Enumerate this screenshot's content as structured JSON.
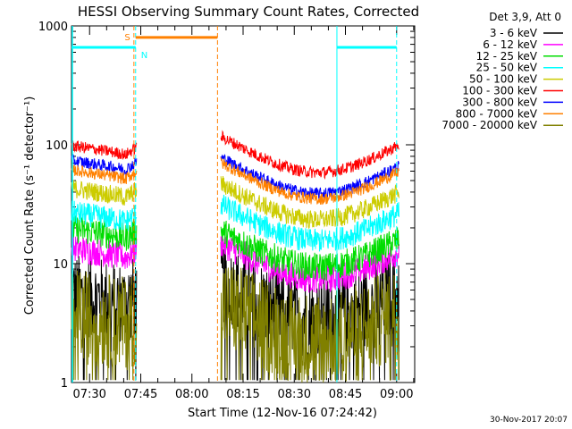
{
  "chart_data": {
    "type": "line",
    "title": "HESSI Observing Summary Count Rates, Corrected",
    "xlabel": "Start Time (12-Nov-16 07:24:42)",
    "ylabel": "Corrected Count Rate (s⁻¹ detector⁻¹)",
    "yscale": "log",
    "ylim": [
      1,
      1000
    ],
    "xlim_minutes": [
      24.7,
      125.3
    ],
    "x_ticks": [
      {
        "m": 30,
        "label": "07:30"
      },
      {
        "m": 45,
        "label": "07:45"
      },
      {
        "m": 60,
        "label": "08:00"
      },
      {
        "m": 75,
        "label": "08:15"
      },
      {
        "m": 90,
        "label": "08:30"
      },
      {
        "m": 105,
        "label": "08:45"
      },
      {
        "m": 120,
        "label": "09:00"
      }
    ],
    "y_ticks": [
      {
        "v": 1,
        "label": "1"
      },
      {
        "v": 10,
        "label": "10"
      },
      {
        "v": 100,
        "label": "100"
      },
      {
        "v": 1000,
        "label": "1000"
      }
    ],
    "legend_header": "Det 3,9, Att 0",
    "legend_position": "right",
    "series": [
      {
        "name": "3 - 6 keV",
        "color": "#000000",
        "pre": 4.5,
        "post": 4.5,
        "noise": 0.35
      },
      {
        "name": "6 - 12 keV",
        "color": "#ff00ff",
        "pre": 11,
        "post": 9.5,
        "noise": 0.12
      },
      {
        "name": "12 - 25 keV",
        "color": "#00dd00",
        "pre": 16,
        "post": 12,
        "noise": 0.12
      },
      {
        "name": "25 - 50 keV",
        "color": "#00ffff",
        "pre": 22,
        "post": 20,
        "noise": 0.1
      },
      {
        "name": "50 - 100 keV",
        "color": "#cccc00",
        "pre": 35,
        "post": 30,
        "noise": 0.08
      },
      {
        "name": "100 - 300 keV",
        "color": "#ff0000",
        "pre": 80,
        "post": 75,
        "noise": 0.05
      },
      {
        "name": "300 - 800 keV",
        "color": "#0000ff",
        "pre": 60,
        "post": 50,
        "noise": 0.05
      },
      {
        "name": "800 - 7000 keV",
        "color": "#ff8000",
        "pre": 50,
        "post": 45,
        "noise": 0.05
      },
      {
        "name": "7000 - 20000 keV",
        "color": "#808000",
        "pre": 3,
        "post": 3,
        "noise": 0.4
      }
    ],
    "annotations": {
      "saa_label": "S",
      "night_label": "N",
      "saa_bar": {
        "start_m": 43.5,
        "end_m": 67.5,
        "level": 800,
        "color": "#ff8000"
      },
      "night_bars": [
        {
          "start_m": 24.7,
          "end_m": 43.5,
          "level": 660,
          "color": "#00ffff"
        },
        {
          "start_m": 102.5,
          "end_m": 120,
          "level": 660,
          "color": "#00ffff"
        }
      ],
      "vlines": [
        {
          "m": 43.0,
          "color": "#ff8000",
          "dashed": true
        },
        {
          "m": 43.5,
          "color": "#00ffff",
          "dashed": true
        },
        {
          "m": 67.5,
          "color": "#ff8000",
          "dashed": true
        },
        {
          "m": 102.5,
          "color": "#00ffff",
          "dashed": false
        },
        {
          "m": 120.0,
          "color": "#00ffff",
          "dashed": true
        }
      ]
    }
  },
  "footer_date": "30-Nov-2017 20:07"
}
